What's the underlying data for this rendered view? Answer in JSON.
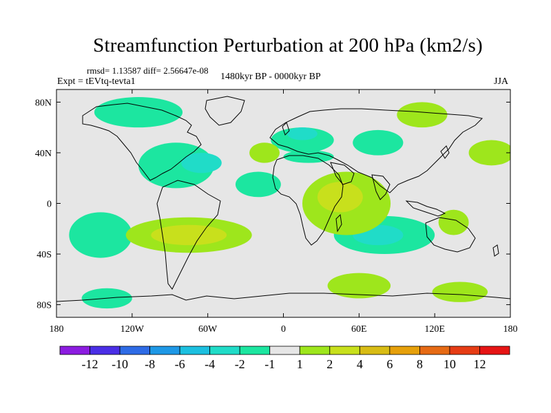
{
  "chart_data": {
    "type": "heatmap",
    "title": "Streamfunction Perturbation at 200 hPa (km2/s)",
    "stats_line": "rmsd= 1.13587 diff= 2.56647e-08",
    "experiment": "Expt = tEVtq-tevta1",
    "period": "1480kyr BP - 0000kyr BP",
    "season": "JJA",
    "x_axis": {
      "range": [
        -180,
        180
      ],
      "ticks": [
        {
          "value": -180,
          "label": "180"
        },
        {
          "value": -120,
          "label": "120W"
        },
        {
          "value": -60,
          "label": "60W"
        },
        {
          "value": 0,
          "label": "0"
        },
        {
          "value": 60,
          "label": "60E"
        },
        {
          "value": 120,
          "label": "120E"
        },
        {
          "value": 180,
          "label": "180"
        }
      ]
    },
    "y_axis": {
      "range": [
        -90,
        90
      ],
      "ticks": [
        {
          "value": 80,
          "label": "80N"
        },
        {
          "value": 40,
          "label": "40N"
        },
        {
          "value": 0,
          "label": "0"
        },
        {
          "value": -40,
          "label": "40S"
        },
        {
          "value": -80,
          "label": "80S"
        }
      ]
    },
    "colorbar": {
      "colors": [
        "#8c1ce0",
        "#4a2ee6",
        "#2e6be6",
        "#1e98e6",
        "#1cc0e0",
        "#20dcc8",
        "#1ce6a0",
        "#e6e6e6",
        "#9ee61c",
        "#c8e01c",
        "#d8bc14",
        "#e6a00a",
        "#e66a14",
        "#e63c14",
        "#e61414"
      ],
      "labels": [
        "-12",
        "-10",
        "-8",
        "-6",
        "-4",
        "-2",
        "-1",
        "1",
        "2",
        "4",
        "6",
        "8",
        "10",
        "12"
      ]
    },
    "regions": [
      {
        "lon": -85,
        "lat": 30,
        "rlon": 30,
        "rlat": 18,
        "level": -1
      },
      {
        "lon": -65,
        "lat": 32,
        "rlon": 16,
        "rlat": 8,
        "level": -2
      },
      {
        "lon": -115,
        "lat": 72,
        "rlon": 35,
        "rlat": 12,
        "level": -1
      },
      {
        "lon": 15,
        "lat": 50,
        "rlon": 25,
        "rlat": 10,
        "level": -1
      },
      {
        "lon": 15,
        "lat": 55,
        "rlon": 12,
        "rlat": 5,
        "level": -2
      },
      {
        "lon": -20,
        "lat": 15,
        "rlon": 18,
        "rlat": 10,
        "level": -1
      },
      {
        "lon": -145,
        "lat": -25,
        "rlon": 25,
        "rlat": 18,
        "level": -1
      },
      {
        "lon": 80,
        "lat": -25,
        "rlon": 40,
        "rlat": 15,
        "level": -1
      },
      {
        "lon": 75,
        "lat": -25,
        "rlon": 20,
        "rlat": 8,
        "level": -2
      },
      {
        "lon": 75,
        "lat": 48,
        "rlon": 20,
        "rlat": 10,
        "level": -1
      },
      {
        "lon": -140,
        "lat": -75,
        "rlon": 20,
        "rlat": 8,
        "level": -1
      },
      {
        "lon": 20,
        "lat": 37,
        "rlon": 20,
        "rlat": 5,
        "level": -1
      },
      {
        "lon": -75,
        "lat": -25,
        "rlon": 50,
        "rlat": 14,
        "level": 1
      },
      {
        "lon": -75,
        "lat": -25,
        "rlon": 30,
        "rlat": 8,
        "level": 2
      },
      {
        "lon": 50,
        "lat": 0,
        "rlon": 35,
        "rlat": 25,
        "level": 1
      },
      {
        "lon": 45,
        "lat": 5,
        "rlon": 18,
        "rlat": 12,
        "level": 2
      },
      {
        "lon": 110,
        "lat": 70,
        "rlon": 20,
        "rlat": 10,
        "level": 1
      },
      {
        "lon": 165,
        "lat": 40,
        "rlon": 18,
        "rlat": 10,
        "level": 1
      },
      {
        "lon": 60,
        "lat": -65,
        "rlon": 25,
        "rlat": 10,
        "level": 1
      },
      {
        "lon": 140,
        "lat": -70,
        "rlon": 22,
        "rlat": 8,
        "level": 1
      },
      {
        "lon": -15,
        "lat": 40,
        "rlon": 12,
        "rlat": 8,
        "level": 1
      },
      {
        "lon": 135,
        "lat": -15,
        "rlon": 12,
        "rlat": 10,
        "level": 1
      }
    ]
  }
}
